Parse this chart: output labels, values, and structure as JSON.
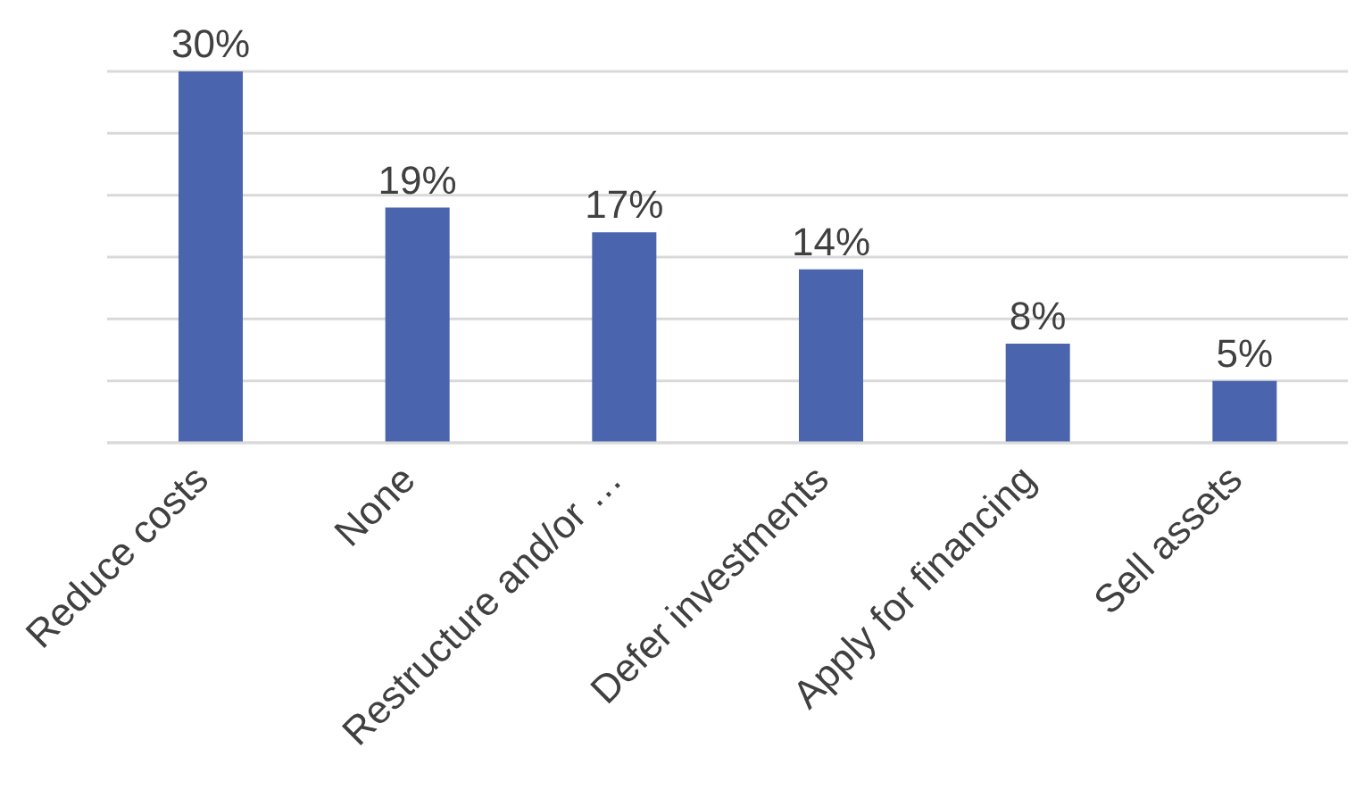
{
  "chart_data": {
    "type": "bar",
    "categories": [
      "Reduce costs",
      "None",
      "Restructure and/or …",
      "Defer investments",
      "Apply for financing",
      "Sell assets"
    ],
    "values": [
      30,
      19,
      17,
      14,
      8,
      5
    ],
    "value_labels": [
      "30%",
      "19%",
      "17%",
      "14%",
      "8%",
      "5%"
    ],
    "color": "#4a65ae",
    "ylim": [
      0,
      30
    ],
    "yticks": [
      {
        "value": 0,
        "label": null
      },
      {
        "value": 5,
        "label": null
      },
      {
        "value": 10,
        "label": null
      },
      {
        "value": 15,
        "label": null
      },
      {
        "value": 20,
        "label": null
      },
      {
        "value": 25,
        "label": null
      },
      {
        "value": 30,
        "label": null
      }
    ],
    "grid": "y",
    "tick_labels": "x",
    "legend": false
  }
}
